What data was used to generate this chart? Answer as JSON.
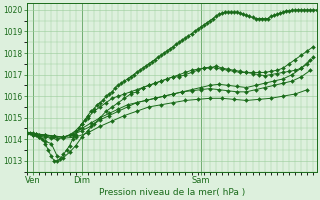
{
  "bg_color": "#ddf0dd",
  "grid_color": "#99cc99",
  "line_color": "#1a6b1a",
  "marker_color": "#1a6b1a",
  "xlabel_text": "Pression niveau de la mer( hPa )",
  "yticks": [
    1013,
    1014,
    1015,
    1016,
    1017,
    1018,
    1019,
    1020
  ],
  "ylim": [
    1012.5,
    1020.3
  ],
  "xtick_labels": [
    "Ven",
    "Dim",
    "Sam"
  ],
  "xtick_positions": [
    2,
    18,
    57
  ],
  "xlim": [
    0,
    95
  ],
  "vlines": [
    2,
    18,
    57
  ],
  "series": [
    {
      "x": [
        0,
        1,
        2,
        3,
        4,
        5,
        6,
        7,
        8,
        9,
        10,
        11,
        12,
        13,
        14,
        15,
        16,
        17,
        18,
        19,
        20,
        21,
        22,
        23,
        24,
        25,
        26,
        27,
        28,
        29,
        30,
        31,
        32,
        33,
        34,
        35,
        36,
        37,
        38,
        39,
        40,
        41,
        42,
        43,
        44,
        45,
        46,
        47,
        48,
        49,
        50,
        51,
        52,
        53,
        54,
        55,
        56,
        57,
        58,
        59,
        60,
        61,
        62,
        63,
        64,
        65,
        66,
        67,
        68,
        69,
        70,
        71,
        72,
        73,
        74,
        75,
        76,
        77,
        78,
        79,
        80,
        81,
        82,
        83,
        84,
        85,
        86,
        87,
        88,
        89,
        90,
        91,
        92,
        93,
        94,
        95
      ],
      "y": [
        1014.3,
        1014.3,
        1014.3,
        1014.2,
        1014.1,
        1014.0,
        1013.8,
        1013.5,
        1013.2,
        1013.0,
        1013.0,
        1013.1,
        1013.3,
        1013.5,
        1013.7,
        1014.0,
        1014.2,
        1014.5,
        1014.7,
        1014.9,
        1015.1,
        1015.3,
        1015.4,
        1015.6,
        1015.7,
        1015.8,
        1016.0,
        1016.1,
        1016.2,
        1016.4,
        1016.5,
        1016.6,
        1016.7,
        1016.8,
        1016.9,
        1017.0,
        1017.1,
        1017.2,
        1017.3,
        1017.4,
        1017.5,
        1017.6,
        1017.7,
        1017.8,
        1017.9,
        1018.0,
        1018.1,
        1018.2,
        1018.3,
        1018.4,
        1018.5,
        1018.6,
        1018.7,
        1018.8,
        1018.9,
        1019.0,
        1019.1,
        1019.2,
        1019.3,
        1019.4,
        1019.5,
        1019.6,
        1019.7,
        1019.8,
        1019.85,
        1019.9,
        1019.9,
        1019.9,
        1019.9,
        1019.9,
        1019.85,
        1019.8,
        1019.75,
        1019.7,
        1019.65,
        1019.6,
        1019.6,
        1019.6,
        1019.6,
        1019.6,
        1019.7,
        1019.75,
        1019.8,
        1019.85,
        1019.9,
        1019.95,
        1019.97,
        1019.98,
        1019.99,
        1020.0,
        1020.0,
        1020.0,
        1020.0,
        1020.0,
        1020.0,
        1020.0
      ]
    },
    {
      "x": [
        0,
        2,
        4,
        6,
        8,
        10,
        12,
        14,
        16,
        18,
        20,
        22,
        24,
        26,
        28,
        30,
        32,
        34,
        36,
        38,
        40,
        42,
        44,
        46,
        48,
        50,
        52,
        54,
        56,
        58,
        60,
        62,
        64,
        66,
        68,
        70,
        72,
        74,
        76,
        78,
        80,
        82,
        84,
        86,
        88,
        90,
        92,
        94
      ],
      "y": [
        1014.3,
        1014.2,
        1014.1,
        1013.9,
        1013.8,
        1013.2,
        1013.15,
        1013.4,
        1013.7,
        1014.1,
        1014.4,
        1014.7,
        1015.0,
        1015.3,
        1015.5,
        1015.7,
        1015.9,
        1016.1,
        1016.2,
        1016.4,
        1016.5,
        1016.6,
        1016.7,
        1016.8,
        1016.9,
        1016.9,
        1017.0,
        1017.1,
        1017.2,
        1017.3,
        1017.3,
        1017.4,
        1017.3,
        1017.25,
        1017.2,
        1017.15,
        1017.1,
        1017.1,
        1017.1,
        1017.1,
        1017.15,
        1017.2,
        1017.3,
        1017.5,
        1017.7,
        1017.9,
        1018.1,
        1018.3
      ]
    },
    {
      "x": [
        0,
        2,
        4,
        6,
        8,
        10,
        12,
        14,
        16,
        18,
        20,
        22,
        24,
        26,
        28,
        30,
        32,
        34,
        36,
        38,
        40,
        42,
        44,
        46,
        48,
        50,
        52,
        54,
        56,
        58,
        60,
        62,
        64,
        66,
        68,
        70,
        72,
        74,
        76,
        78,
        80,
        82,
        84,
        86,
        88,
        90,
        92,
        94
      ],
      "y": [
        1014.3,
        1014.2,
        1014.15,
        1014.1,
        1014.05,
        1014.0,
        1014.1,
        1014.2,
        1014.4,
        1014.7,
        1015.0,
        1015.3,
        1015.5,
        1015.7,
        1015.9,
        1016.0,
        1016.1,
        1016.2,
        1016.3,
        1016.4,
        1016.5,
        1016.6,
        1016.7,
        1016.8,
        1016.9,
        1017.0,
        1017.1,
        1017.2,
        1017.25,
        1017.3,
        1017.35,
        1017.3,
        1017.25,
        1017.2,
        1017.15,
        1017.1,
        1017.1,
        1017.05,
        1017.0,
        1016.95,
        1017.0,
        1017.05,
        1017.1,
        1017.15,
        1017.2,
        1017.3,
        1017.5,
        1017.8
      ]
    },
    {
      "x": [
        0,
        3,
        6,
        9,
        12,
        15,
        18,
        21,
        24,
        27,
        30,
        33,
        36,
        39,
        42,
        45,
        48,
        51,
        54,
        57,
        60,
        63,
        66,
        69,
        72,
        75,
        78,
        81,
        84,
        87,
        90,
        93
      ],
      "y": [
        1014.3,
        1014.25,
        1014.2,
        1014.15,
        1014.1,
        1014.2,
        1014.4,
        1014.6,
        1014.9,
        1015.1,
        1015.3,
        1015.5,
        1015.7,
        1015.8,
        1015.9,
        1016.0,
        1016.1,
        1016.2,
        1016.3,
        1016.4,
        1016.5,
        1016.55,
        1016.5,
        1016.45,
        1016.4,
        1016.5,
        1016.6,
        1016.7,
        1016.8,
        1017.0,
        1017.3,
        1017.7
      ]
    },
    {
      "x": [
        0,
        3,
        6,
        9,
        12,
        15,
        18,
        21,
        24,
        27,
        30,
        33,
        36,
        39,
        42,
        45,
        48,
        51,
        54,
        57,
        60,
        63,
        66,
        69,
        72,
        75,
        78,
        81,
        84,
        87,
        90,
        93
      ],
      "y": [
        1014.3,
        1014.25,
        1014.2,
        1014.15,
        1014.1,
        1014.25,
        1014.5,
        1014.75,
        1015.0,
        1015.2,
        1015.4,
        1015.6,
        1015.7,
        1015.8,
        1015.9,
        1016.0,
        1016.1,
        1016.2,
        1016.25,
        1016.3,
        1016.35,
        1016.3,
        1016.25,
        1016.2,
        1016.2,
        1016.3,
        1016.4,
        1016.5,
        1016.6,
        1016.7,
        1016.9,
        1017.2
      ]
    },
    {
      "x": [
        0,
        4,
        8,
        12,
        16,
        20,
        24,
        28,
        32,
        36,
        40,
        44,
        48,
        52,
        56,
        60,
        64,
        68,
        72,
        76,
        80,
        84,
        88,
        92
      ],
      "y": [
        1014.3,
        1014.2,
        1014.1,
        1014.05,
        1014.1,
        1014.3,
        1014.6,
        1014.85,
        1015.1,
        1015.3,
        1015.5,
        1015.6,
        1015.7,
        1015.8,
        1015.85,
        1015.9,
        1015.9,
        1015.85,
        1015.8,
        1015.85,
        1015.9,
        1016.0,
        1016.1,
        1016.3
      ]
    }
  ]
}
